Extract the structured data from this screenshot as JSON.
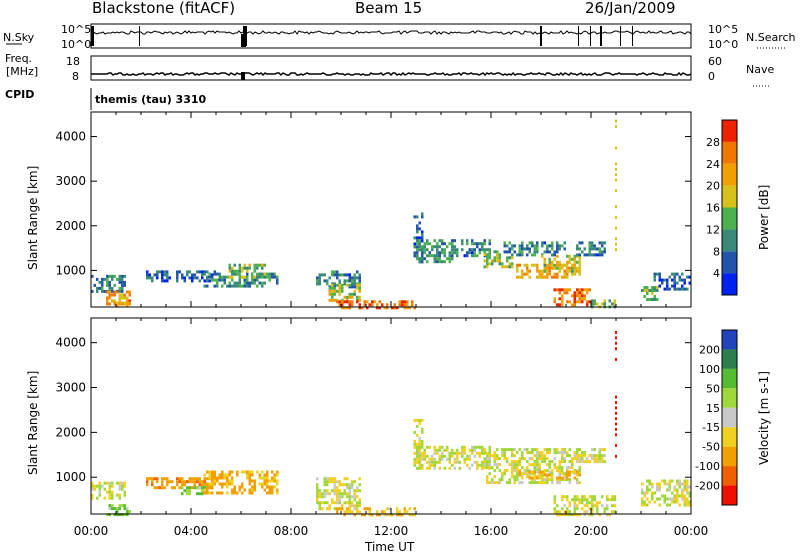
{
  "header": {
    "station": "Blackstone (fitACF)",
    "beam": "Beam 15",
    "date": "26/Jan/2009"
  },
  "top_panel": {
    "left_label": "N.Sky",
    "right_label": "N.Search",
    "y_ticks_left": [
      "10^5",
      "10^0"
    ],
    "y_ticks_right": [
      "10^5",
      "10^0"
    ]
  },
  "freq_panel": {
    "left_label": "Freq.",
    "left_unit": "[MHz]",
    "right_label": "Nave",
    "y_ticks_left": [
      "18",
      "8"
    ],
    "y_ticks_right": [
      "60",
      "0"
    ]
  },
  "cpid": {
    "label": "CPID",
    "value": "themis (tau) 3310"
  },
  "colors": {
    "power": [
      "#0022ee",
      "#2255aa",
      "#3a8a7a",
      "#4caf50",
      "#d6c21a",
      "#f0a000",
      "#f07800",
      "#ee2200"
    ],
    "velocity": [
      "#2244bb",
      "#2e7d4f",
      "#55bb33",
      "#9fd83a",
      "#c8c8c8",
      "#f0d020",
      "#f0a000",
      "#f06000",
      "#ee1100"
    ]
  },
  "chart_data": [
    {
      "type": "heatmap",
      "name": "power",
      "ylabel": "Slant Range [km]",
      "xlabel": "Time UT",
      "x_ticks": [
        "00:00",
        "04:00",
        "08:00",
        "12:00",
        "16:00",
        "20:00",
        "00:00"
      ],
      "y_ticks": [
        "1000",
        "2000",
        "3000",
        "4000"
      ],
      "xlim": [
        0,
        24
      ],
      "ylim": [
        180,
        4550
      ],
      "colorbar_label": "Power [dB]",
      "colorbar_ticks": [
        "4",
        "8",
        "12",
        "16",
        "20",
        "24",
        "28"
      ],
      "colorbar_range": [
        0,
        30
      ],
      "regions": [
        {
          "t0": 0.0,
          "t1": 1.4,
          "r0": 500,
          "r1": 900,
          "value": 8
        },
        {
          "t0": 0.6,
          "t1": 1.6,
          "r0": 250,
          "r1": 550,
          "value": 22
        },
        {
          "t0": 1.0,
          "t1": 1.6,
          "r0": 180,
          "r1": 300,
          "value": 20
        },
        {
          "t0": 2.2,
          "t1": 5.0,
          "r0": 750,
          "r1": 1000,
          "value": 6
        },
        {
          "t0": 4.5,
          "t1": 7.5,
          "r0": 650,
          "r1": 950,
          "value": 10
        },
        {
          "t0": 5.5,
          "t1": 7.0,
          "r0": 850,
          "r1": 1150,
          "value": 14
        },
        {
          "t0": 9.0,
          "t1": 10.8,
          "r0": 650,
          "r1": 1000,
          "value": 8
        },
        {
          "t0": 9.5,
          "t1": 10.8,
          "r0": 300,
          "r1": 700,
          "value": 16
        },
        {
          "t0": 9.8,
          "t1": 13.0,
          "r0": 180,
          "r1": 330,
          "value": 26
        },
        {
          "t0": 12.9,
          "t1": 13.3,
          "r0": 1200,
          "r1": 2300,
          "value": 6
        },
        {
          "t0": 13.0,
          "t1": 14.5,
          "r0": 1200,
          "r1": 1700,
          "value": 10
        },
        {
          "t0": 14.5,
          "t1": 16.0,
          "r0": 1350,
          "r1": 1700,
          "value": 8
        },
        {
          "t0": 15.7,
          "t1": 16.8,
          "r0": 1050,
          "r1": 1450,
          "value": 14
        },
        {
          "t0": 16.5,
          "t1": 19.0,
          "r0": 1350,
          "r1": 1650,
          "value": 8
        },
        {
          "t0": 17.0,
          "t1": 19.6,
          "r0": 850,
          "r1": 1150,
          "value": 20
        },
        {
          "t0": 18.0,
          "t1": 19.6,
          "r0": 950,
          "r1": 1350,
          "value": 16
        },
        {
          "t0": 19.4,
          "t1": 20.6,
          "r0": 1350,
          "r1": 1650,
          "value": 8
        },
        {
          "t0": 18.5,
          "t1": 20.0,
          "r0": 250,
          "r1": 600,
          "value": 24
        },
        {
          "t0": 20.0,
          "t1": 21.0,
          "r0": 180,
          "r1": 350,
          "value": 14
        },
        {
          "t0": 22.0,
          "t1": 22.6,
          "r0": 350,
          "r1": 650,
          "value": 14
        },
        {
          "t0": 22.5,
          "t1": 24.0,
          "r0": 600,
          "r1": 950,
          "value": 6
        }
      ],
      "sparse_column": {
        "t": 21.0,
        "r0": 1500,
        "r1": 4500,
        "value": 16
      }
    },
    {
      "type": "heatmap",
      "name": "velocity",
      "ylabel": "Slant Range [km]",
      "xlabel": "Time UT",
      "x_ticks": [
        "00:00",
        "04:00",
        "08:00",
        "12:00",
        "16:00",
        "20:00",
        "00:00"
      ],
      "y_ticks": [
        "1000",
        "2000",
        "3000",
        "4000"
      ],
      "xlim": [
        0,
        24
      ],
      "ylim": [
        180,
        4550
      ],
      "colorbar_label": "Velocity [m s-1]",
      "colorbar_ticks": [
        "200",
        "100",
        "50",
        "15",
        "-15",
        "-50",
        "-100",
        "-200"
      ],
      "colorbar_range": [
        -250,
        250
      ],
      "regions": [
        {
          "t0": 0.0,
          "t1": 1.4,
          "r0": 500,
          "r1": 900,
          "value": 0
        },
        {
          "t0": 0.6,
          "t1": 1.6,
          "r0": 180,
          "r1": 400,
          "value": 30
        },
        {
          "t0": 2.2,
          "t1": 5.0,
          "r0": 750,
          "r1": 1000,
          "value": -60
        },
        {
          "t0": 3.6,
          "t1": 4.6,
          "r0": 600,
          "r1": 800,
          "value": 30
        },
        {
          "t0": 4.5,
          "t1": 7.5,
          "r0": 650,
          "r1": 1150,
          "value": -40
        },
        {
          "t0": 9.0,
          "t1": 10.8,
          "r0": 300,
          "r1": 1000,
          "value": 0
        },
        {
          "t0": 9.8,
          "t1": 13.0,
          "r0": 180,
          "r1": 330,
          "value": -30
        },
        {
          "t0": 12.9,
          "t1": 13.3,
          "r0": 1200,
          "r1": 2300,
          "value": 0
        },
        {
          "t0": 13.0,
          "t1": 16.0,
          "r0": 1200,
          "r1": 1700,
          "value": 0
        },
        {
          "t0": 15.7,
          "t1": 19.6,
          "r0": 850,
          "r1": 1650,
          "value": 0
        },
        {
          "t0": 17.0,
          "t1": 19.6,
          "r0": 950,
          "r1": 1150,
          "value": -30
        },
        {
          "t0": 18.5,
          "t1": 21.0,
          "r0": 180,
          "r1": 600,
          "value": 0
        },
        {
          "t0": 19.4,
          "t1": 20.6,
          "r0": 1350,
          "r1": 1650,
          "value": 0
        },
        {
          "t0": 22.0,
          "t1": 24.0,
          "r0": 350,
          "r1": 950,
          "value": 0
        }
      ],
      "sparse_column": {
        "t": 21.0,
        "r0": 1500,
        "r1": 4500,
        "value": -220
      }
    }
  ]
}
